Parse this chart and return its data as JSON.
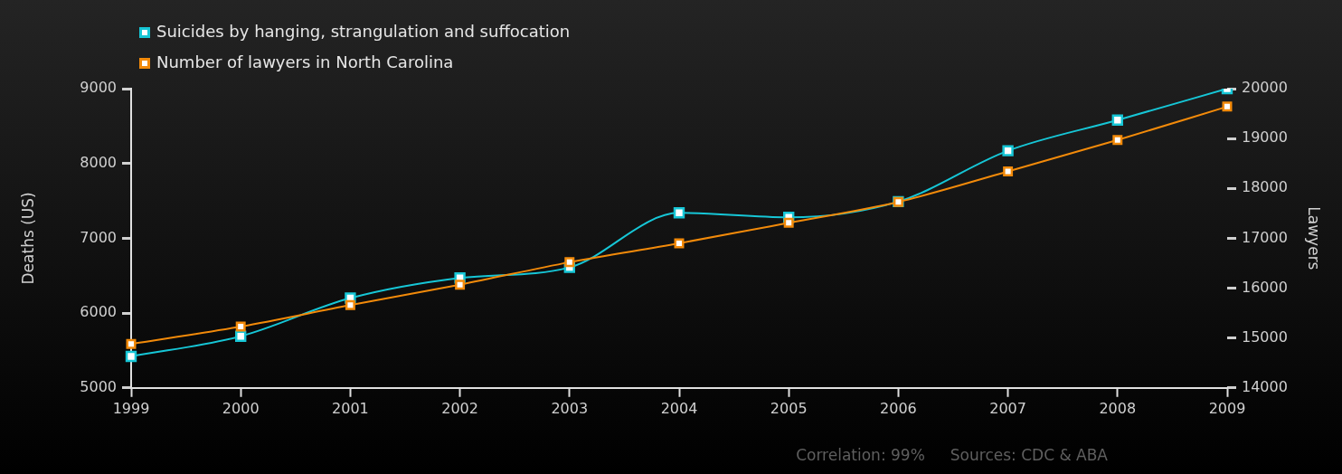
{
  "chart_data": {
    "type": "line",
    "categories": [
      "1999",
      "2000",
      "2001",
      "2002",
      "2003",
      "2004",
      "2005",
      "2006",
      "2007",
      "2008",
      "2009"
    ],
    "ylabel": "Deaths (US)",
    "y2label": "Lawyers",
    "ylim": [
      5000,
      9000
    ],
    "yticks": [
      5000,
      6000,
      7000,
      8000,
      9000
    ],
    "y2lim": [
      14000,
      20000
    ],
    "y2ticks": [
      14000,
      15000,
      16000,
      17000,
      18000,
      19000,
      20000
    ],
    "series": [
      {
        "name": "Suicides by hanging, strangulation and suffocation",
        "color": "#16c6d6",
        "values": [
          5420,
          5690,
          6200,
          6470,
          6610,
          7340,
          7280,
          7490,
          8170,
          8580,
          9000
        ]
      },
      {
        "name": "Number of lawyers in North Carolina",
        "color": "#f28a0a",
        "axis": "y2",
        "values": [
          14880,
          15230,
          15660,
          16070,
          16520,
          16900,
          17310,
          17730,
          18340,
          18970,
          19640
        ]
      }
    ],
    "marker": "square",
    "line_style": "solid",
    "grid": false,
    "legend": "top left",
    "annotations": [
      "Correlation: 99%",
      "Sources: CDC & ABA"
    ]
  }
}
